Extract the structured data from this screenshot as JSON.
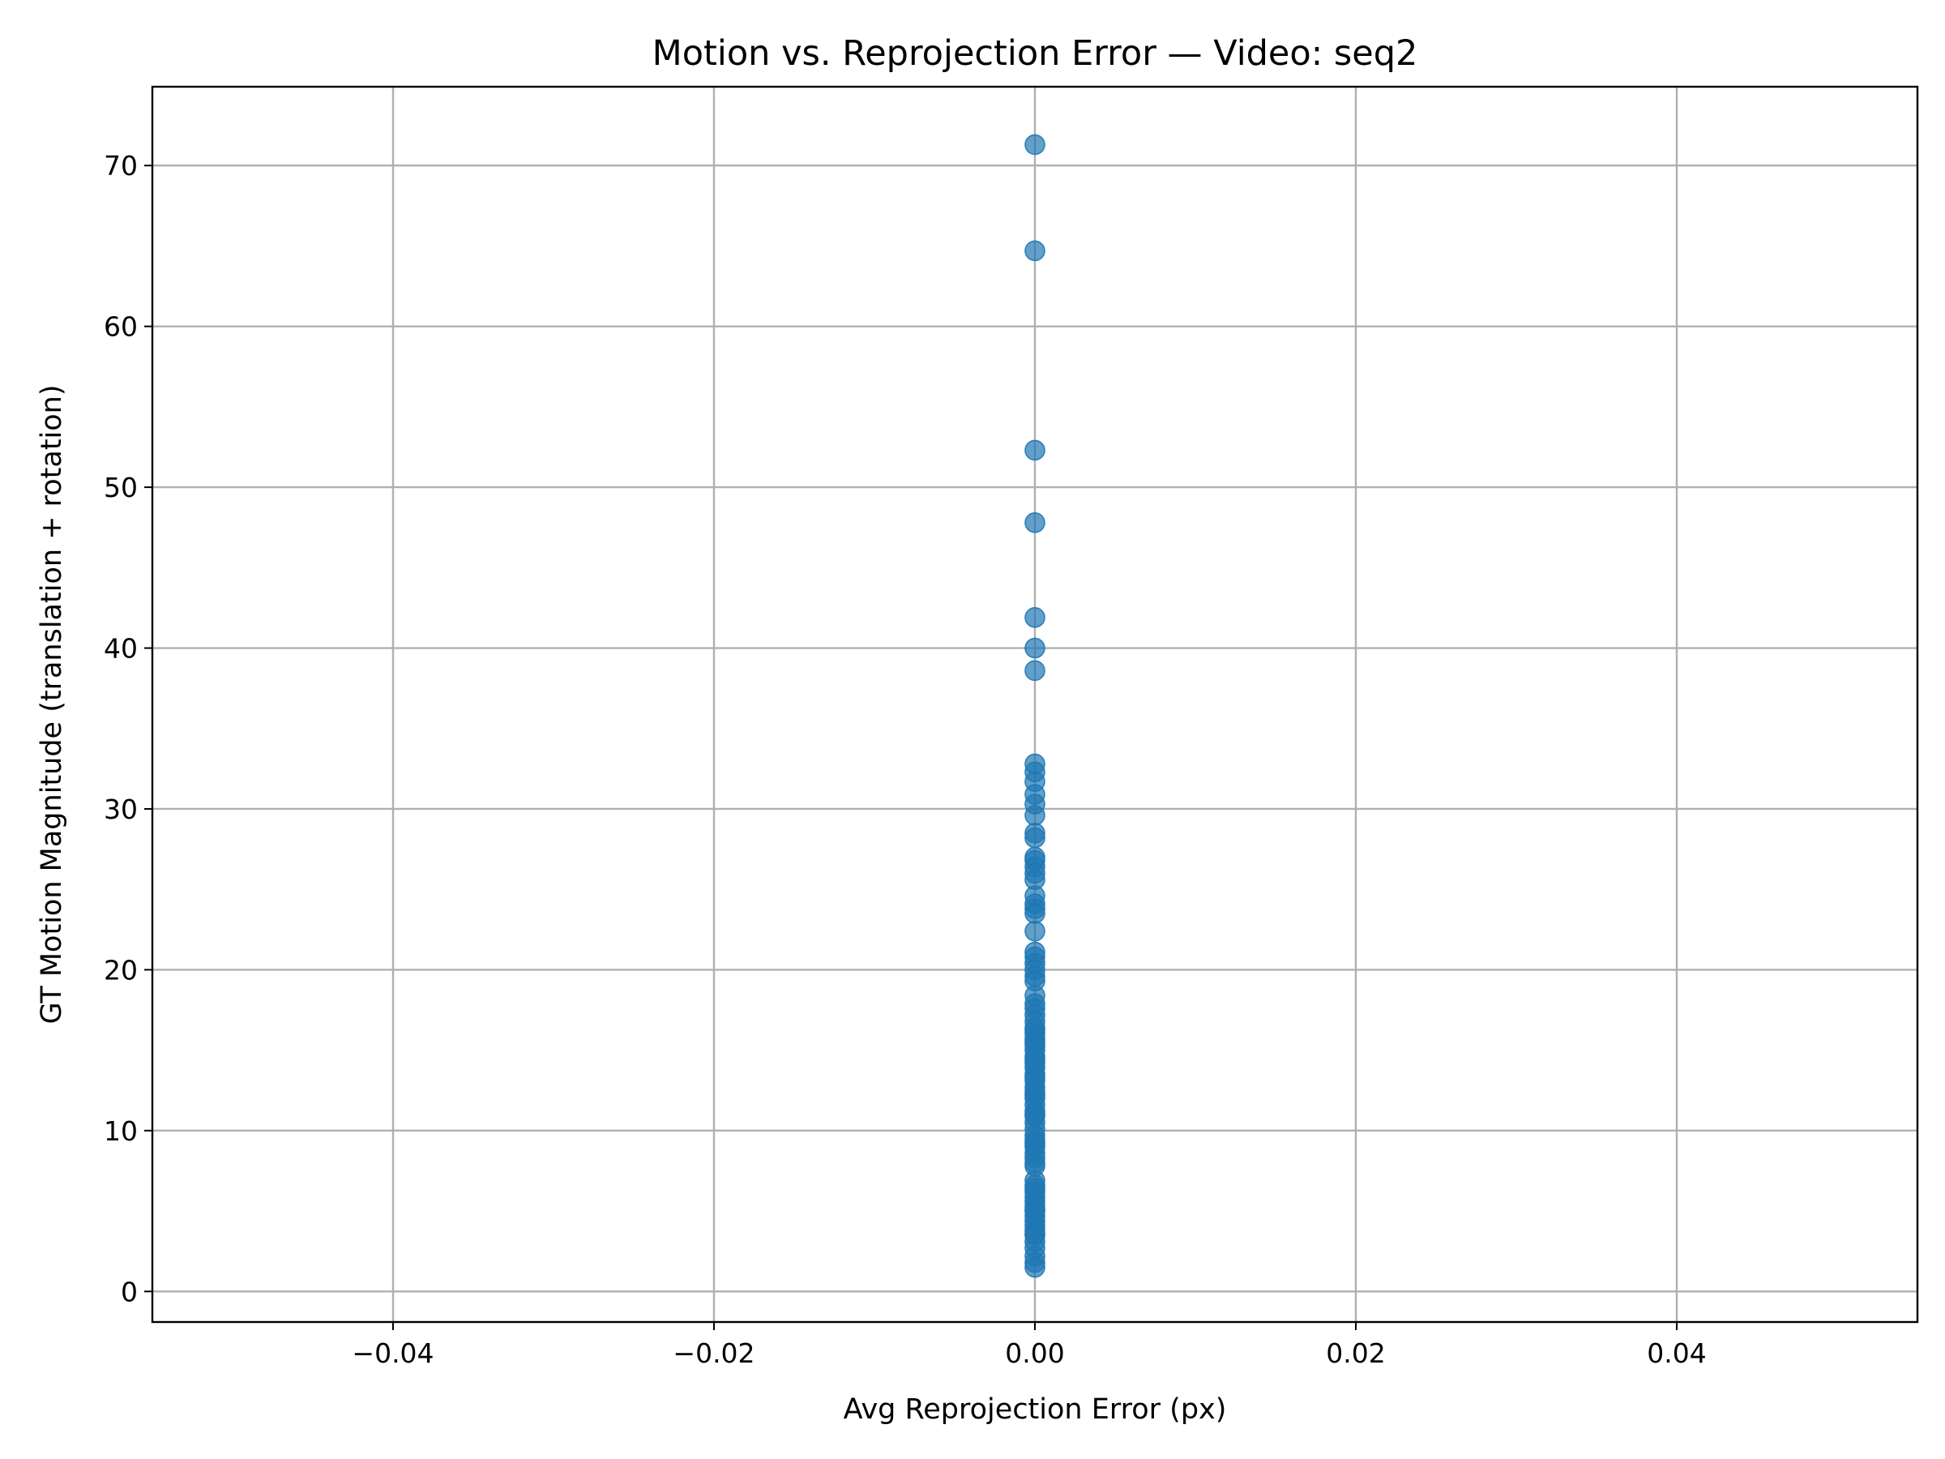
{
  "chart_data": {
    "type": "scatter",
    "title": "Motion vs. Reprojection Error — Video: seq2",
    "xlabel": "Avg Reprojection Error (px)",
    "ylabel": "GT Motion Magnitude (translation + rotation)",
    "xlim": [
      -0.055,
      0.055
    ],
    "ylim": [
      -1.9,
      74.9
    ],
    "x_ticks": [
      -0.04,
      -0.02,
      0.0,
      0.02,
      0.04
    ],
    "x_tick_labels": [
      "−0.04",
      "−0.02",
      "0.00",
      "0.02",
      "0.04"
    ],
    "y_ticks": [
      0,
      10,
      20,
      30,
      40,
      50,
      60,
      70
    ],
    "y_tick_labels": [
      "0",
      "10",
      "20",
      "30",
      "40",
      "50",
      "60",
      "70"
    ],
    "grid": true,
    "point_color": "#1f77b4",
    "point_alpha": 0.7,
    "series": [
      {
        "x": [
          0,
          0,
          0,
          0,
          0,
          0,
          0,
          0,
          0,
          0,
          0,
          0,
          0,
          0,
          0,
          0,
          0,
          0,
          0,
          0,
          0,
          0,
          0,
          0,
          0,
          0,
          0,
          0,
          0,
          0,
          0,
          0,
          0,
          0,
          0,
          0,
          0,
          0,
          0,
          0,
          0,
          0,
          0,
          0,
          0,
          0,
          0,
          0,
          0,
          0,
          0,
          0,
          0,
          0,
          0,
          0,
          0,
          0,
          0,
          0,
          0,
          0,
          0,
          0,
          0,
          0,
          0,
          0,
          0,
          0,
          0,
          0,
          0,
          0,
          0,
          0,
          0,
          0,
          0,
          0,
          0,
          0,
          0,
          0,
          0,
          0,
          0,
          0
        ],
        "y": [
          71.3,
          64.7,
          52.3,
          47.8,
          41.9,
          40.0,
          38.6,
          32.8,
          32.3,
          31.7,
          30.9,
          30.3,
          29.6,
          28.5,
          28.2,
          26.8,
          26.4,
          26.0,
          25.6,
          24.1,
          23.8,
          23.5,
          22.4,
          21.1,
          20.8,
          20.4,
          20.0,
          19.6,
          19.3,
          17.9,
          17.6,
          17.2,
          16.8,
          16.4,
          16.0,
          15.7,
          15.3,
          15.0,
          14.6,
          14.2,
          13.9,
          13.5,
          13.1,
          12.7,
          12.4,
          12.0,
          11.6,
          11.2,
          10.9,
          10.5,
          10.1,
          9.7,
          9.4,
          9.0,
          8.6,
          8.3,
          8.0,
          6.9,
          6.6,
          6.2,
          5.9,
          5.6,
          5.3,
          5.0,
          4.7,
          4.4,
          4.1,
          3.8,
          3.5,
          3.1,
          2.7,
          2.2,
          1.8,
          1.5,
          13.3,
          14.4,
          15.5,
          16.2,
          12.2,
          11.0,
          9.2,
          7.8,
          6.4,
          5.1,
          3.6,
          18.4,
          24.6,
          27.0
        ]
      }
    ]
  }
}
